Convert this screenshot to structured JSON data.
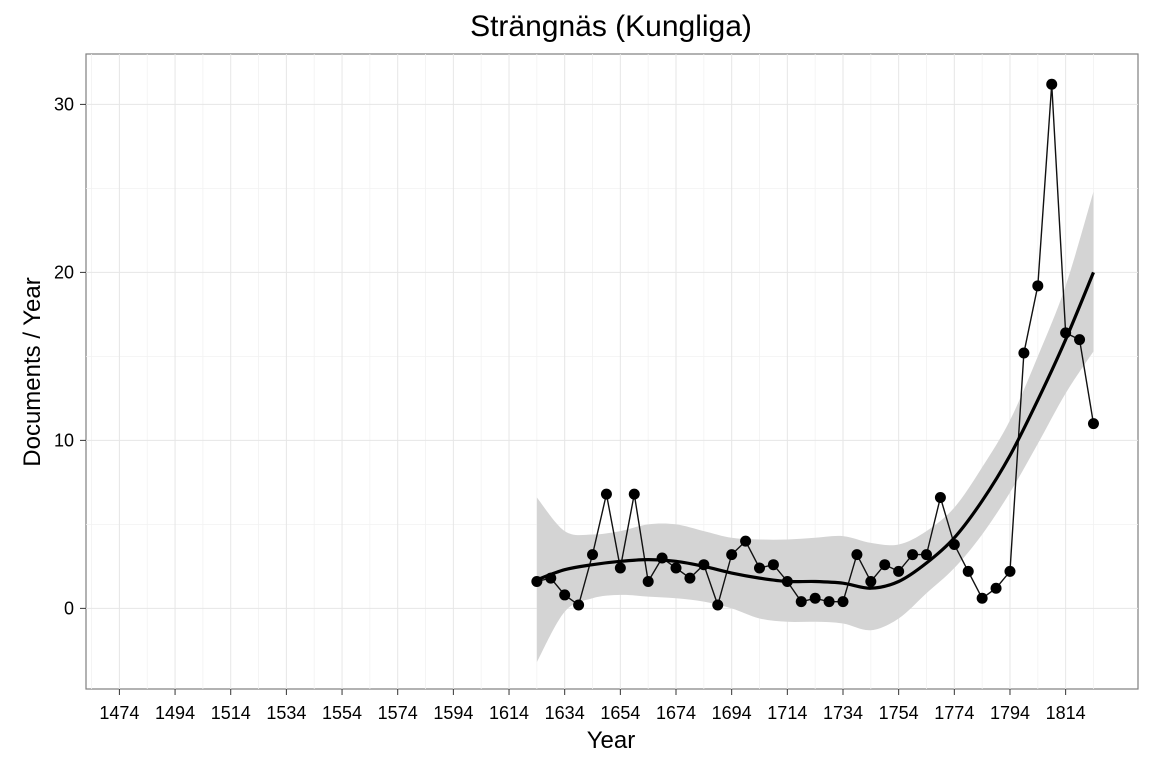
{
  "chart_data": {
    "type": "line",
    "title": "Strängnäs (Kungliga)",
    "xlabel": "Year",
    "ylabel": "Documents / Year",
    "xlim": [
      1462,
      1840
    ],
    "ylim": [
      -4.8,
      33
    ],
    "x_ticks": [
      1474,
      1494,
      1514,
      1534,
      1554,
      1574,
      1594,
      1614,
      1634,
      1654,
      1674,
      1694,
      1714,
      1734,
      1754,
      1774,
      1794,
      1814
    ],
    "y_ticks": [
      0,
      10,
      20,
      30
    ],
    "grid": true,
    "series": [
      {
        "kind": "observed",
        "x": [
          1624,
          1629,
          1634,
          1639,
          1644,
          1649,
          1654,
          1659,
          1664,
          1669,
          1674,
          1679,
          1684,
          1689,
          1694,
          1699,
          1704,
          1709,
          1714,
          1719,
          1724,
          1729,
          1734,
          1739,
          1744,
          1749,
          1754,
          1759,
          1764,
          1769,
          1774,
          1779,
          1784,
          1789,
          1794,
          1799,
          1804,
          1809,
          1814,
          1819,
          1824
        ],
        "y": [
          1.6,
          1.8,
          0.8,
          0.2,
          3.2,
          6.8,
          2.4,
          6.8,
          1.6,
          3.0,
          2.4,
          1.8,
          2.6,
          0.2,
          3.2,
          4.0,
          2.4,
          2.6,
          1.6,
          0.4,
          0.6,
          0.4,
          0.4,
          3.2,
          1.6,
          2.6,
          2.2,
          3.2,
          3.2,
          6.6,
          3.8,
          2.2,
          0.6,
          1.2,
          2.2,
          15.2,
          19.2,
          31.2,
          16.4,
          16.0,
          11.0
        ]
      },
      {
        "kind": "smooth",
        "x": [
          1624,
          1634,
          1644,
          1654,
          1664,
          1674,
          1684,
          1694,
          1704,
          1714,
          1724,
          1734,
          1744,
          1754,
          1764,
          1774,
          1784,
          1794,
          1804,
          1814,
          1824
        ],
        "y": [
          1.7,
          2.3,
          2.6,
          2.8,
          2.9,
          2.8,
          2.5,
          2.1,
          1.8,
          1.6,
          1.6,
          1.5,
          1.2,
          1.6,
          2.7,
          4.2,
          6.4,
          9.1,
          12.4,
          16.0,
          20.0
        ],
        "lower": [
          -3.2,
          -0.2,
          0.6,
          0.8,
          0.7,
          0.6,
          0.4,
          0.0,
          -0.6,
          -0.8,
          -0.8,
          -0.9,
          -1.3,
          -0.6,
          0.9,
          2.4,
          4.4,
          6.9,
          9.8,
          12.8,
          15.3
        ],
        "upper": [
          6.6,
          4.6,
          4.4,
          4.6,
          5.0,
          5.0,
          4.6,
          4.2,
          4.1,
          4.1,
          4.2,
          4.3,
          3.9,
          3.8,
          4.6,
          6.0,
          8.4,
          11.2,
          15.0,
          19.2,
          24.8
        ]
      }
    ]
  }
}
